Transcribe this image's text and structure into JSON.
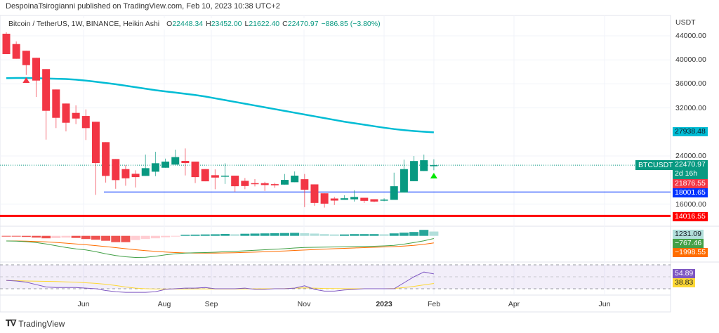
{
  "header": {
    "published": "DespoinaTsirogianni published on TradingView.com, Feb 10, 2023 10:38 UTC+2",
    "symbol_desc": "Bitcoin / TetherUS, 1W, BINANCE, Heikin Ashi",
    "ohlc": {
      "o_label": "O",
      "o": "22448.34",
      "h_label": "H",
      "h": "23452.00",
      "l_label": "L",
      "l": "21622.40",
      "c_label": "C",
      "c": "22470.97",
      "change": "−886.85 (−3.80%)"
    }
  },
  "price_axis": {
    "currency": "USDT",
    "ticks": [
      "44000.00",
      "40000.00",
      "36000.00",
      "32000.00",
      "24000.00",
      "16000.00"
    ],
    "tick_values": [
      44000,
      40000,
      36000,
      32000,
      24000,
      16000
    ],
    "labels": {
      "ema": {
        "text": "27938.48",
        "value": 27938.48,
        "color": "#00bcd4"
      },
      "symbol_badge": "BTCUSDT",
      "last": {
        "text": "22470.97",
        "value": 22470.97,
        "countdown": "2d 16h",
        "color": "#089981"
      },
      "low_marker": {
        "text": "21876.55",
        "value": 21876.55,
        "color": "#f23645"
      },
      "support": {
        "text": "18001.65",
        "value": 18001.65,
        "color": "#0033ff"
      },
      "major_support": {
        "text": "14016.55",
        "value": 14016.55,
        "color": "#ff0000"
      }
    }
  },
  "macd_axis": {
    "hist": {
      "text": "1231.09",
      "color": "#b2dfdb"
    },
    "macd": {
      "text": "−767.46",
      "color": "#43a047"
    },
    "signal": {
      "text": "−1998.55",
      "color": "#ff6d00"
    }
  },
  "rsi_axis": {
    "rsi": {
      "text": "54.89",
      "color": "#7e57c2"
    },
    "rsi_ma": {
      "text": "38.83",
      "color": "#fdd835"
    }
  },
  "time_axis": [
    "Jun",
    "Aug",
    "Sep",
    "Nov",
    "2023",
    "Feb",
    "Apr",
    "Jun"
  ],
  "footer": {
    "brand": "TradingView"
  },
  "chart_data": {
    "type": "candlestick",
    "style": "Heikin Ashi",
    "interval": "1W",
    "ylim": [
      13500,
      45500
    ],
    "colors": {
      "up": "#089981",
      "down": "#f23645",
      "ema": "#00bcd4"
    },
    "candles": [
      [
        44350,
        44600,
        40960,
        40960
      ],
      [
        42630,
        43060,
        40180,
        40180
      ],
      [
        41510,
        41510,
        37480,
        39120
      ],
      [
        40340,
        40340,
        33820,
        36550
      ],
      [
        38470,
        38470,
        26720,
        31520
      ],
      [
        35070,
        35070,
        28640,
        30350
      ],
      [
        32730,
        32730,
        28090,
        29530
      ],
      [
        31170,
        32420,
        29300,
        30230
      ],
      [
        30660,
        31750,
        26660,
        28640
      ],
      [
        29690,
        29690,
        17520,
        22820
      ],
      [
        26300,
        26300,
        19570,
        20680
      ],
      [
        23490,
        23490,
        18530,
        19980
      ],
      [
        21810,
        22470,
        19040,
        20280
      ],
      [
        21030,
        21620,
        18760,
        20480
      ],
      [
        20680,
        24230,
        20680,
        21970
      ],
      [
        21380,
        24700,
        20640,
        22790
      ],
      [
        22040,
        23560,
        22040,
        23060
      ],
      [
        22560,
        25050,
        22560,
        23810
      ],
      [
        23180,
        25250,
        20760,
        22820
      ],
      [
        23060,
        23060,
        19490,
        20480
      ],
      [
        21810,
        21810,
        19780,
        19780
      ],
      [
        20800,
        21770,
        18460,
        20400
      ],
      [
        20560,
        22790,
        19340,
        20720
      ],
      [
        20720,
        20720,
        18060,
        18960
      ],
      [
        19860,
        20330,
        18460,
        18990
      ],
      [
        19470,
        20140,
        18930,
        19310
      ],
      [
        19470,
        19700,
        18180,
        19160
      ],
      [
        19310,
        19550,
        18700,
        19120
      ],
      [
        19230,
        21000,
        19230,
        20015
      ],
      [
        19630,
        21420,
        19630,
        20720
      ],
      [
        20130,
        21000,
        15480,
        18370
      ],
      [
        19270,
        19270,
        15710,
        16180
      ],
      [
        17780,
        17780,
        15400,
        16060
      ],
      [
        16920,
        17200,
        15830,
        16570
      ],
      [
        16700,
        17450,
        16700,
        16960
      ],
      [
        16780,
        18290,
        16410,
        17170
      ],
      [
        17040,
        17040,
        16180,
        16530
      ],
      [
        16800,
        16800,
        16300,
        16410
      ],
      [
        16610,
        16960,
        16450,
        16730
      ],
      [
        16690,
        21220,
        16690,
        18960
      ],
      [
        17910,
        23380,
        17910,
        21810
      ],
      [
        19800,
        23990,
        19800,
        23160
      ],
      [
        21500,
        24230,
        21500,
        23290
      ],
      [
        22448.34,
        23452.0,
        21622.4,
        22470.97
      ]
    ],
    "ema": [
      36950,
      36980,
      36980,
      36950,
      36900,
      36850,
      36800,
      36700,
      36550,
      36350,
      36150,
      35950,
      35700,
      35450,
      35200,
      34950,
      34750,
      34550,
      34350,
      34150,
      33900,
      33600,
      33300,
      33000,
      32700,
      32400,
      32100,
      31800,
      31500,
      31200,
      30900,
      30600,
      30300,
      30000,
      29700,
      29450,
      29200,
      28950,
      28700,
      28480,
      28300,
      28150,
      28030,
      27938.48
    ],
    "sell_signal_candle": 2,
    "buy_signal_candle": 43,
    "macd": {
      "hist": [
        -100,
        -200,
        -300,
        -500,
        -700,
        -650,
        -500,
        -600,
        -900,
        -1100,
        -1400,
        -1800,
        -1800,
        -1200,
        -900,
        -700,
        -400,
        -200,
        300,
        350,
        400,
        450,
        550,
        450,
        600,
        650,
        700,
        750,
        800,
        850,
        750,
        650,
        500,
        400,
        400,
        500,
        500,
        500,
        450,
        700,
        900,
        1100,
        1700,
        1231.09
      ],
      "macd": [
        -1450,
        -1500,
        -1650,
        -1900,
        -2300,
        -2800,
        -3300,
        -3700,
        -4000,
        -4500,
        -5100,
        -5600,
        -5950,
        -6150,
        -6100,
        -5800,
        -5400,
        -5100,
        -4900,
        -4800,
        -4750,
        -4650,
        -4500,
        -4400,
        -4250,
        -4100,
        -3950,
        -3800,
        -3650,
        -3450,
        -3300,
        -3250,
        -3200,
        -3150,
        -3100,
        -3050,
        -3000,
        -2950,
        -2850,
        -2700,
        -2350,
        -1900,
        -1400,
        -767.46
      ],
      "signal": [
        -1450,
        -1470,
        -1520,
        -1600,
        -1720,
        -1880,
        -2080,
        -2300,
        -2530,
        -2780,
        -3060,
        -3360,
        -3660,
        -3950,
        -4200,
        -4420,
        -4600,
        -4750,
        -4850,
        -4900,
        -4920,
        -4900,
        -4850,
        -4800,
        -4720,
        -4630,
        -4530,
        -4420,
        -4300,
        -4170,
        -4030,
        -3900,
        -3780,
        -3660,
        -3550,
        -3450,
        -3350,
        -3260,
        -3170,
        -3060,
        -2900,
        -2700,
        -2400,
        -1998.55
      ]
    },
    "rsi": {
      "bands": [
        70,
        50,
        30
      ],
      "rsi": [
        44,
        43,
        41,
        37,
        33,
        32,
        32,
        32,
        31,
        30,
        27,
        25,
        24,
        24,
        24,
        25,
        29,
        30,
        31,
        31,
        32,
        30,
        30,
        30,
        31,
        29,
        29,
        30,
        30,
        31,
        35,
        29,
        26,
        26,
        28,
        29,
        30,
        30,
        30,
        30,
        40,
        50,
        58,
        54.89
      ],
      "ma": [
        43.8,
        43.5,
        43,
        42.7,
        42.3,
        42,
        41.5,
        41,
        40,
        39,
        37.5,
        35.5,
        33,
        31,
        30,
        29.5,
        29.5,
        29.5,
        29.5,
        29.7,
        29.7,
        29.5,
        29.5,
        29.5,
        29.7,
        29.9,
        30,
        30,
        30.3,
        31,
        31.4,
        31,
        30.5,
        30.3,
        30.2,
        30,
        30,
        30,
        30,
        30.5,
        32,
        34,
        36.5,
        38.83
      ]
    }
  }
}
